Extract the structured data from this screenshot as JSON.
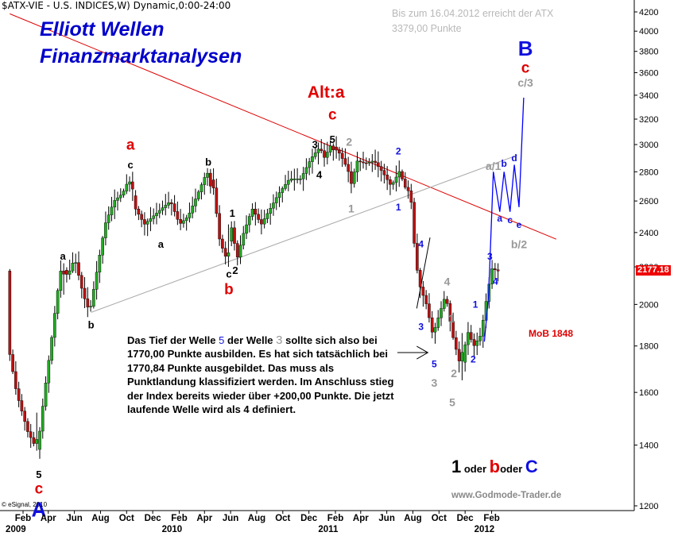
{
  "header": {
    "title": "$ATX-VIE - U.S. INDICES,W) Dynamic,0:00-24:00"
  },
  "overlay": {
    "title_line1": "Elliott Wellen",
    "title_line2": "Finanzmarktanalysen",
    "forecast_line1": "Bis zum 16.04.2012 erreicht der ATX",
    "forecast_line2": "3379,00 Punkte",
    "note_part1": "Das Tief der Welle ",
    "note_wave5": "5",
    "note_part2": " der Welle ",
    "note_wave3": "3",
    "note_part3": " sollte sich also bei 1770,00 Punkte ausbilden. Es hat sich tatsächlich bei 1770,84 Punkte ausgebildet. Das muss als Punktlandung klassifiziert werden. Im Anschluss stieg der Index bereits wieder über +200,00 Punkte. Die jetzt laufende Welle wird als 4 definiert.",
    "mob_label": "MoB 1848",
    "legend_1": "1",
    "legend_oder1": " oder ",
    "legend_b": "b",
    "legend_oder2": "oder ",
    "legend_c": "C",
    "website": "www.Godmode-Trader.de",
    "copyright": "© eSignal, 2010",
    "last_price": "2177.18"
  },
  "colors": {
    "candle": "#000000",
    "bullish_body": "#22aa22",
    "bearish_body": "#bb1111",
    "resistance_line": "#dd0000",
    "support_line": "#aaaaaa",
    "forecast_path": "#0000ff",
    "label_black": "#000000",
    "label_red": "#e00000",
    "label_blue": "#1010e0",
    "label_grey": "#999999",
    "price_tag": "#ee0000"
  },
  "chart_data": {
    "type": "candlestick",
    "instrument": "$ATX-VIE",
    "interval": "weekly",
    "y_axis_position": "right",
    "ylim": [
      1200,
      4300
    ],
    "y_ticks": [
      1200,
      1400,
      1600,
      1800,
      2000,
      2200,
      2400,
      2600,
      2800,
      3000,
      3200,
      3400,
      3600,
      3800,
      4000,
      4200
    ],
    "x_axis": {
      "months": [
        {
          "label": "Feb",
          "date": "2009-02"
        },
        {
          "label": "Apr",
          "date": "2009-04"
        },
        {
          "label": "Jun",
          "date": "2009-06"
        },
        {
          "label": "Aug",
          "date": "2009-08"
        },
        {
          "label": "Oct",
          "date": "2009-10"
        },
        {
          "label": "Dec",
          "date": "2009-12"
        },
        {
          "label": "Feb",
          "date": "2010-02"
        },
        {
          "label": "Apr",
          "date": "2010-04"
        },
        {
          "label": "Jun",
          "date": "2010-06"
        },
        {
          "label": "Aug",
          "date": "2010-08"
        },
        {
          "label": "Oct",
          "date": "2010-10"
        },
        {
          "label": "Dec",
          "date": "2010-12"
        },
        {
          "label": "Feb",
          "date": "2011-02"
        },
        {
          "label": "Apr",
          "date": "2011-04"
        },
        {
          "label": "Jun",
          "date": "2011-06"
        },
        {
          "label": "Aug",
          "date": "2011-08"
        },
        {
          "label": "Oct",
          "date": "2011-10"
        },
        {
          "label": "Dec",
          "date": "2011-12"
        },
        {
          "label": "Feb",
          "date": "2012-02"
        }
      ],
      "years": [
        {
          "label": "2009",
          "date": "2009-01"
        },
        {
          "label": "2010",
          "date": "2010-01"
        },
        {
          "label": "2011",
          "date": "2011-01"
        },
        {
          "label": "2012",
          "date": "2012-01"
        }
      ]
    },
    "price_path": [
      [
        "2009-01-01",
        1800
      ],
      [
        "2009-01-20",
        1600
      ],
      [
        "2009-02-15",
        1450
      ],
      [
        "2009-03-10",
        1380
      ],
      [
        "2009-03-25",
        1580
      ],
      [
        "2009-04-10",
        1800
      ],
      [
        "2009-04-25",
        2050
      ],
      [
        "2009-05-05",
        2200
      ],
      [
        "2009-05-20",
        2150
      ],
      [
        "2009-06-05",
        2250
      ],
      [
        "2009-06-25",
        2050
      ],
      [
        "2009-07-10",
        1960
      ],
      [
        "2009-07-25",
        2150
      ],
      [
        "2009-08-15",
        2450
      ],
      [
        "2009-09-05",
        2600
      ],
      [
        "2009-09-25",
        2650
      ],
      [
        "2009-10-10",
        2750
      ],
      [
        "2009-10-25",
        2550
      ],
      [
        "2009-11-15",
        2450
      ],
      [
        "2009-12-05",
        2500
      ],
      [
        "2009-12-25",
        2550
      ],
      [
        "2010-01-15",
        2600
      ],
      [
        "2010-02-05",
        2450
      ],
      [
        "2010-02-25",
        2500
      ],
      [
        "2010-03-20",
        2650
      ],
      [
        "2010-04-10",
        2800
      ],
      [
        "2010-04-25",
        2700
      ],
      [
        "2010-05-10",
        2350
      ],
      [
        "2010-05-25",
        2250
      ],
      [
        "2010-06-05",
        2450
      ],
      [
        "2010-06-20",
        2250
      ],
      [
        "2010-07-05",
        2400
      ],
      [
        "2010-07-25",
        2550
      ],
      [
        "2010-08-15",
        2450
      ],
      [
        "2010-09-05",
        2550
      ],
      [
        "2010-09-25",
        2650
      ],
      [
        "2010-10-20",
        2750
      ],
      [
        "2010-11-15",
        2750
      ],
      [
        "2010-12-10",
        2900
      ],
      [
        "2010-12-30",
        2980
      ],
      [
        "2011-01-10",
        2900
      ],
      [
        "2011-01-25",
        3000
      ],
      [
        "2011-02-15",
        2930
      ],
      [
        "2011-03-05",
        2820
      ],
      [
        "2011-03-15",
        2700
      ],
      [
        "2011-03-25",
        2880
      ],
      [
        "2011-04-15",
        2860
      ],
      [
        "2011-05-05",
        2880
      ],
      [
        "2011-05-25",
        2800
      ],
      [
        "2011-06-15",
        2700
      ],
      [
        "2011-07-05",
        2810
      ],
      [
        "2011-07-15",
        2700
      ],
      [
        "2011-07-30",
        2650
      ],
      [
        "2011-08-10",
        2250
      ],
      [
        "2011-08-20",
        2100
      ],
      [
        "2011-09-05",
        2000
      ],
      [
        "2011-09-20",
        1850
      ],
      [
        "2011-10-05",
        1950
      ],
      [
        "2011-10-20",
        2050
      ],
      [
        "2011-11-05",
        1850
      ],
      [
        "2011-11-25",
        1700
      ],
      [
        "2011-12-10",
        1870
      ],
      [
        "2011-12-25",
        1800
      ],
      [
        "2012-01-10",
        1850
      ],
      [
        "2012-01-25",
        2050
      ],
      [
        "2012-02-05",
        2190
      ],
      [
        "2012-02-20",
        2177
      ]
    ],
    "candles": [
      {
        "date": "2009-03-06",
        "low": 1380,
        "high": 1520,
        "close": 1420
      },
      {
        "date": "2009-05-08",
        "low": 2050,
        "high": 2220,
        "close": 2160
      },
      {
        "date": "2009-10-16",
        "low": 2600,
        "high": 2800,
        "close": 2680
      },
      {
        "date": "2010-04-16",
        "low": 2650,
        "high": 2820,
        "close": 2700
      },
      {
        "date": "2010-05-28",
        "low": 2200,
        "high": 2450,
        "close": 2280
      },
      {
        "date": "2011-01-28",
        "low": 2880,
        "high": 3010,
        "close": 2960
      },
      {
        "date": "2011-11-25",
        "low": 1650,
        "high": 1860,
        "close": 1770.84
      },
      {
        "date": "2012-02-17",
        "low": 2120,
        "high": 2220,
        "close": 2177.18
      }
    ],
    "resistance_line": [
      [
        "2009-01-01",
        4180
      ],
      [
        "2012-07-01",
        2360
      ]
    ],
    "support_line": [
      [
        "2009-07-10",
        1960
      ],
      [
        "2012-04-01",
        2920
      ]
    ],
    "channel_line": [
      [
        "2011-08-10",
        1980
      ],
      [
        "2011-09-10",
        2370
      ]
    ],
    "forecast_path": [
      [
        "2012-01-15",
        1820
      ],
      [
        "2012-01-25",
        2050
      ],
      [
        "2012-02-05",
        2800
      ],
      [
        "2012-02-20",
        2530
      ],
      [
        "2012-03-01",
        2800
      ],
      [
        "2012-03-15",
        2530
      ],
      [
        "2012-03-25",
        2850
      ],
      [
        "2012-04-05",
        2560
      ],
      [
        "2012-04-16",
        3379
      ]
    ],
    "wave_labels": [
      {
        "text": "5",
        "date": "2009-03-10",
        "price": 1300,
        "color": "black"
      },
      {
        "text": "c",
        "date": "2009-03-10",
        "price": 1255,
        "color": "red"
      },
      {
        "text": "A",
        "date": "2009-03-10",
        "price": 1190,
        "color": "blue"
      },
      {
        "text": "a",
        "date": "2009-05-05",
        "price": 2260,
        "color": "black"
      },
      {
        "text": "b",
        "date": "2009-07-10",
        "price": 1900,
        "color": "black"
      },
      {
        "text": "a",
        "date": "2009-10-10",
        "price": 3000,
        "color": "red"
      },
      {
        "text": "c",
        "date": "2009-10-10",
        "price": 2850,
        "color": "black"
      },
      {
        "text": "a",
        "date": "2009-12-20",
        "price": 2330,
        "color": "black"
      },
      {
        "text": "b",
        "date": "2010-04-10",
        "price": 2870,
        "color": "black"
      },
      {
        "text": "1",
        "date": "2010-06-05",
        "price": 2520,
        "color": "black"
      },
      {
        "text": "c",
        "date": "2010-05-28",
        "price": 2160,
        "color": "black"
      },
      {
        "text": "2",
        "date": "2010-06-12",
        "price": 2180,
        "color": "black"
      },
      {
        "text": "b",
        "date": "2010-05-28",
        "price": 2080,
        "color": "red"
      },
      {
        "text": "3",
        "date": "2010-12-15",
        "price": 3000,
        "color": "black"
      },
      {
        "text": "4",
        "date": "2010-12-25",
        "price": 2780,
        "color": "black"
      },
      {
        "text": "Alt:a",
        "date": "2011-01-10",
        "price": 3430,
        "color": "red"
      },
      {
        "text": "c",
        "date": "2011-01-25",
        "price": 3240,
        "color": "red"
      },
      {
        "text": "5",
        "date": "2011-01-25",
        "price": 3040,
        "color": "black"
      },
      {
        "text": "2",
        "date": "2011-03-05",
        "price": 3020,
        "color": "grey"
      },
      {
        "text": "1",
        "date": "2011-03-10",
        "price": 2550,
        "color": "grey"
      },
      {
        "text": "2",
        "date": "2011-06-28",
        "price": 2950,
        "color": "blue"
      },
      {
        "text": "1",
        "date": "2011-06-28",
        "price": 2560,
        "color": "blue"
      },
      {
        "text": "4",
        "date": "2011-08-20",
        "price": 2330,
        "color": "blue"
      },
      {
        "text": "3",
        "date": "2011-08-20",
        "price": 1890,
        "color": "blue"
      },
      {
        "text": "4",
        "date": "2011-10-20",
        "price": 2120,
        "color": "grey"
      },
      {
        "text": "5",
        "date": "2011-09-20",
        "price": 1720,
        "color": "blue"
      },
      {
        "text": "3",
        "date": "2011-09-20",
        "price": 1640,
        "color": "grey"
      },
      {
        "text": "1",
        "date": "2011-10-30",
        "price": 1930,
        "color": "grey"
      },
      {
        "text": "2",
        "date": "2011-11-05",
        "price": 1680,
        "color": "grey"
      },
      {
        "text": "5",
        "date": "2011-11-01",
        "price": 1560,
        "color": "grey"
      },
      {
        "text": "1",
        "date": "2011-12-25",
        "price": 2000,
        "color": "blue"
      },
      {
        "text": "2",
        "date": "2011-12-20",
        "price": 1740,
        "color": "blue"
      },
      {
        "text": "3",
        "date": "2012-01-28",
        "price": 2260,
        "color": "blue"
      },
      {
        "text": "4",
        "date": "2012-02-10",
        "price": 2120,
        "color": "blue"
      },
      {
        "text": "a/1",
        "date": "2012-02-05",
        "price": 2840,
        "color": "grey"
      },
      {
        "text": "a",
        "date": "2012-02-20",
        "price": 2490,
        "color": "blue"
      },
      {
        "text": "b",
        "date": "2012-03-01",
        "price": 2860,
        "color": "blue"
      },
      {
        "text": "c",
        "date": "2012-03-15",
        "price": 2480,
        "color": "blue"
      },
      {
        "text": "d",
        "date": "2012-03-25",
        "price": 2900,
        "color": "blue"
      },
      {
        "text": "e",
        "date": "2012-04-05",
        "price": 2450,
        "color": "blue"
      },
      {
        "text": "b/2",
        "date": "2012-04-05",
        "price": 2330,
        "color": "grey"
      },
      {
        "text": "B",
        "date": "2012-04-20",
        "price": 3830,
        "color": "blue"
      },
      {
        "text": "c",
        "date": "2012-04-20",
        "price": 3650,
        "color": "red"
      },
      {
        "text": "c/3",
        "date": "2012-04-20",
        "price": 3510,
        "color": "grey"
      }
    ],
    "last_price": 2177.18,
    "forecast_target": 3379.0,
    "mob_level": 1848,
    "wave5_low_expected": 1770.0,
    "wave5_low_actual": 1770.84
  }
}
